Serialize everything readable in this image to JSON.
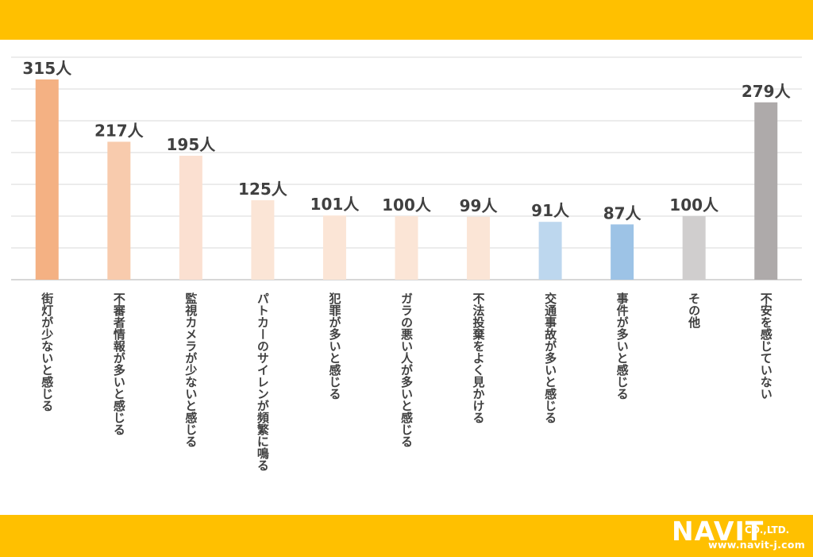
{
  "colors": {
    "band": "#FFC000",
    "grid": "#D9D9D9",
    "axis": "#BFBFBF",
    "label_text": "#404040"
  },
  "chart_data": {
    "type": "bar",
    "title": "",
    "xlabel": "",
    "ylabel": "",
    "ylim": [
      0,
      350
    ],
    "grid": true,
    "unit_suffix": "人",
    "categories": [
      "街灯が少ないと感じる",
      "不審者情報が多いと感じる",
      "監視カメラが少ないと感じる",
      "パトカーのサイレンが頻繁に鳴る",
      "犯罪が多いと感じる",
      "ガラの悪い人が多いと感じる",
      "不法投棄をよく見かける",
      "交通事故が多いと感じる",
      "事件が多いと感じる",
      "その他",
      "不安を感じていない"
    ],
    "values": [
      315,
      217,
      195,
      125,
      101,
      100,
      99,
      91,
      87,
      100,
      279
    ],
    "data_labels": [
      "315人",
      "217人",
      "195人",
      "125人",
      "101人",
      "100人",
      "99人",
      "91人",
      "87人",
      "100人",
      "279人"
    ],
    "bar_colors": [
      "#F4B183",
      "#F8CBAD",
      "#FBE0D1",
      "#FBE5D6",
      "#FBE5D6",
      "#FBE5D6",
      "#FBE5D6",
      "#BDD7EE",
      "#9DC3E6",
      "#D0CECE",
      "#AEAAAA"
    ]
  },
  "logo": {
    "main": "NAVIT",
    "sub": "CO.,LTD.",
    "url": "www.navit-j.com"
  }
}
